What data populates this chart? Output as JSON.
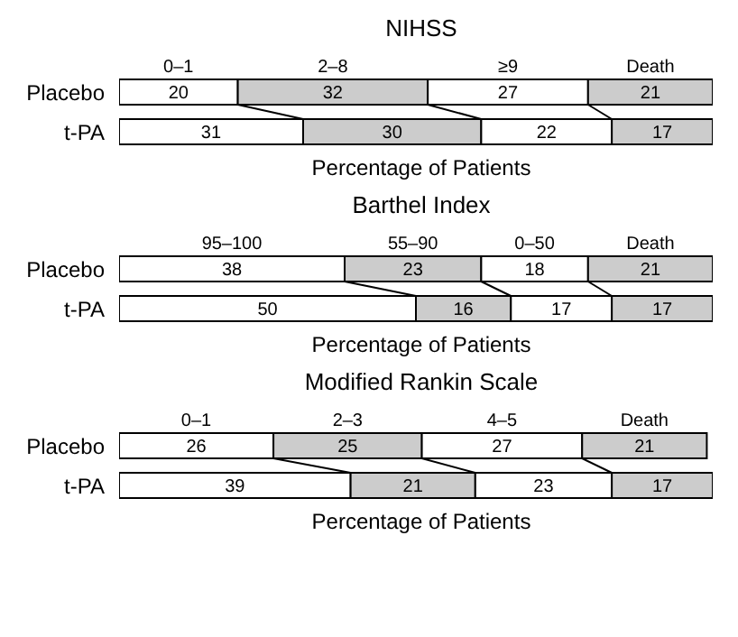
{
  "chart_data": [
    {
      "type": "bar",
      "orientation": "horizontal",
      "stacked": true,
      "title": "NIHSS",
      "xlabel": "Percentage of Patients",
      "categories": [
        "Placebo",
        "t-PA"
      ],
      "xlim": [
        0,
        100
      ],
      "tick_labels": "y",
      "data_labels": true,
      "grid": false,
      "legend": false,
      "series": [
        {
          "name": "0–1",
          "color": "#ffffff",
          "values": [
            20,
            31
          ]
        },
        {
          "name": "2–8",
          "color": "#cccccc",
          "values": [
            32,
            30
          ]
        },
        {
          "name": "≥9",
          "color": "#ffffff",
          "values": [
            27,
            22
          ]
        },
        {
          "name": "Death",
          "color": "#cccccc",
          "values": [
            21,
            17
          ]
        }
      ]
    },
    {
      "type": "bar",
      "orientation": "horizontal",
      "stacked": true,
      "title": "Barthel Index",
      "xlabel": "Percentage of Patients",
      "categories": [
        "Placebo",
        "t-PA"
      ],
      "xlim": [
        0,
        100
      ],
      "tick_labels": "y",
      "data_labels": true,
      "grid": false,
      "legend": false,
      "series": [
        {
          "name": "95–100",
          "color": "#ffffff",
          "values": [
            38,
            50
          ]
        },
        {
          "name": "55–90",
          "color": "#cccccc",
          "values": [
            23,
            16
          ]
        },
        {
          "name": "0–50",
          "color": "#ffffff",
          "values": [
            18,
            17
          ]
        },
        {
          "name": "Death",
          "color": "#cccccc",
          "values": [
            21,
            17
          ]
        }
      ]
    },
    {
      "type": "bar",
      "orientation": "horizontal",
      "stacked": true,
      "title": "Modified Rankin Scale",
      "xlabel": "Percentage of Patients",
      "categories": [
        "Placebo",
        "t-PA"
      ],
      "xlim": [
        0,
        100
      ],
      "tick_labels": "y",
      "data_labels": true,
      "grid": false,
      "legend": false,
      "series": [
        {
          "name": "0–1",
          "color": "#ffffff",
          "values": [
            26,
            39
          ]
        },
        {
          "name": "2–3",
          "color": "#cccccc",
          "values": [
            25,
            21
          ]
        },
        {
          "name": "4–5",
          "color": "#ffffff",
          "values": [
            27,
            23
          ]
        },
        {
          "name": "Death",
          "color": "#cccccc",
          "values": [
            21,
            17
          ]
        }
      ]
    }
  ]
}
